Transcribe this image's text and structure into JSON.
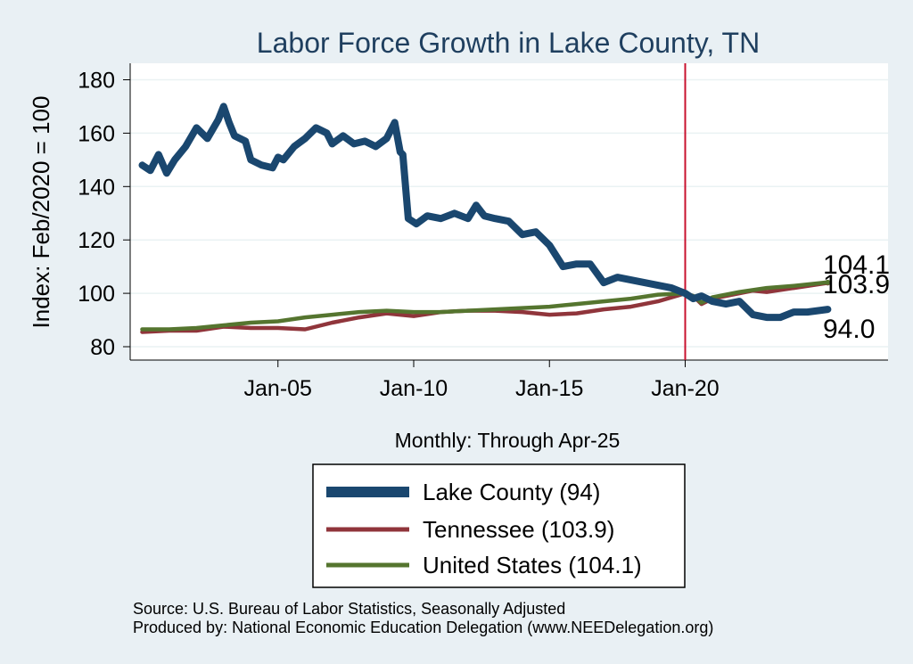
{
  "chart_data": {
    "type": "line",
    "title": "Labor Force Growth in Lake  County, TN",
    "xlabel": "Monthly: Through Apr-25",
    "ylabel": "Index: Feb/2020 = 100",
    "ylim": [
      80,
      186
    ],
    "xlim": [
      2000.0,
      2028.0
    ],
    "yticks": [
      "80",
      "100",
      "120",
      "140",
      "160",
      "180"
    ],
    "ytick_values": [
      80,
      100,
      120,
      140,
      160,
      180
    ],
    "xticks": [
      "Jan-05",
      "Jan-10",
      "Jan-15",
      "Jan-20"
    ],
    "xtick_values": [
      2005,
      2010,
      2015,
      2020
    ],
    "reference_line": {
      "x": 2020.0,
      "color": "#c8102e"
    },
    "series": [
      {
        "name": "Lake  County (94)",
        "color": "#1a476f",
        "end_label": "94.0",
        "x": [
          2000.0,
          2000.3,
          2000.6,
          2000.9,
          2001.2,
          2001.6,
          2002.0,
          2002.4,
          2002.8,
          2003.0,
          2003.2,
          2003.4,
          2003.6,
          2003.8,
          2004.0,
          2004.4,
          2004.8,
          2005.0,
          2005.2,
          2005.6,
          2006.0,
          2006.4,
          2006.8,
          2007.0,
          2007.4,
          2007.8,
          2008.2,
          2008.6,
          2009.0,
          2009.3,
          2009.5,
          2009.6,
          2009.8,
          2009.95,
          2010.1,
          2010.5,
          2011.0,
          2011.5,
          2012.0,
          2012.3,
          2012.6,
          2013.0,
          2013.5,
          2014.0,
          2014.5,
          2015.0,
          2015.5,
          2016.0,
          2016.5,
          2017.0,
          2017.5,
          2018.0,
          2018.5,
          2019.0,
          2019.5,
          2020.0,
          2020.3,
          2020.6,
          2021.0,
          2021.5,
          2022.0,
          2022.5,
          2023.0,
          2023.5,
          2024.0,
          2024.5,
          2025.25
        ],
        "values": [
          148,
          146,
          152,
          145,
          150,
          155,
          162,
          158,
          165,
          170,
          164,
          159,
          158,
          157,
          150,
          148,
          147,
          151,
          150,
          155,
          158,
          162,
          160,
          156,
          159,
          156,
          157,
          155,
          158,
          164,
          153,
          152,
          128,
          127,
          126,
          129,
          128,
          130,
          128,
          133,
          129,
          128,
          127,
          122,
          123,
          118,
          110,
          111,
          111,
          104,
          106,
          105,
          104,
          103,
          102,
          100,
          98,
          99,
          97,
          96,
          97,
          92,
          91,
          91,
          93,
          93,
          94
        ]
      },
      {
        "name": "Tennessee (103.9)",
        "color": "#90353b",
        "end_label": "103.9",
        "x": [
          2000.0,
          2001.0,
          2002.0,
          2003.0,
          2004.0,
          2005.0,
          2006.0,
          2007.0,
          2008.0,
          2009.0,
          2010.0,
          2011.0,
          2012.0,
          2013.0,
          2014.0,
          2015.0,
          2016.0,
          2017.0,
          2018.0,
          2019.0,
          2020.0,
          2020.3,
          2020.6,
          2021.0,
          2022.0,
          2022.5,
          2023.0,
          2024.0,
          2025.25
        ],
        "values": [
          85.5,
          86,
          86,
          87.5,
          87,
          87,
          86.5,
          89,
          91,
          92.5,
          91.5,
          93,
          93.5,
          93.5,
          93,
          92,
          92.5,
          94,
          95,
          97,
          100,
          99,
          96,
          98,
          100,
          101,
          100.5,
          102,
          103.9
        ]
      },
      {
        "name": "United States (104.1)",
        "color": "#55752f",
        "end_label": "104.1",
        "x": [
          2000.0,
          2001.0,
          2002.0,
          2003.0,
          2004.0,
          2005.0,
          2006.0,
          2007.0,
          2008.0,
          2009.0,
          2010.0,
          2011.0,
          2012.0,
          2013.0,
          2014.0,
          2015.0,
          2016.0,
          2017.0,
          2018.0,
          2019.0,
          2020.0,
          2020.3,
          2020.6,
          2021.0,
          2022.0,
          2023.0,
          2024.0,
          2025.25
        ],
        "values": [
          86.5,
          86.5,
          87,
          88,
          89,
          89.5,
          91,
          92,
          93,
          93.5,
          93,
          93,
          93.5,
          94,
          94.5,
          95,
          96,
          97,
          98,
          99.5,
          100,
          99,
          96.5,
          98.5,
          100.5,
          102,
          102.8,
          104.1
        ]
      }
    ]
  },
  "legend": {
    "items": [
      "Lake  County (94)",
      "Tennessee (103.9)",
      "United States (104.1)"
    ]
  },
  "source": {
    "line1": "Source: U.S. Bureau of Labor Statistics, Seasonally Adjusted",
    "line2": "Produced by: National Economic Education Delegation (www.NEEDelegation.org)"
  }
}
